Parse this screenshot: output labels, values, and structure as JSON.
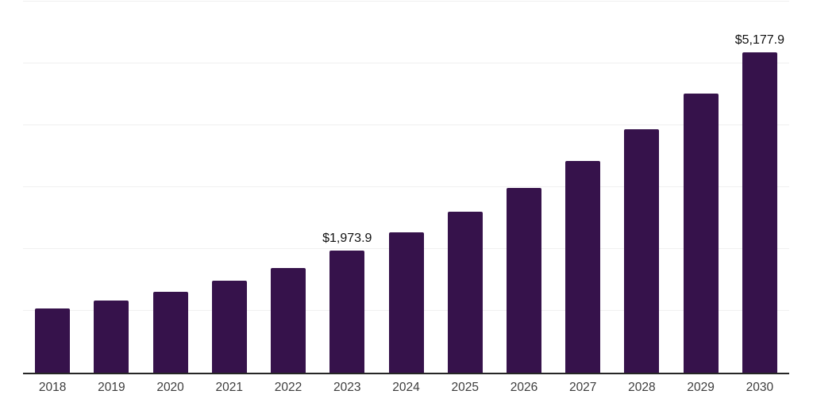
{
  "chart_data": {
    "type": "bar",
    "title": "",
    "xlabel": "",
    "ylabel": "",
    "categories": [
      "2018",
      "2019",
      "2020",
      "2021",
      "2022",
      "2023",
      "2024",
      "2025",
      "2026",
      "2027",
      "2028",
      "2029",
      "2030"
    ],
    "values": [
      1040,
      1165,
      1310,
      1490,
      1695,
      1973.9,
      2265,
      2600,
      2985,
      3425,
      3930,
      4510,
      5177.9
    ],
    "labeled_points": [
      {
        "category": "2023",
        "label": "$1,973.9"
      },
      {
        "category": "2030",
        "label": "$5,177.9"
      }
    ],
    "ylim": [
      0,
      6000
    ],
    "grid_interval": 1000,
    "grid": "horizontal",
    "legend": "none",
    "colors": {
      "bar": "#36124B",
      "grid": "#f0f0f0",
      "axis": "#262626",
      "value_label": "#111111",
      "tick_label": "#3d3d3d"
    }
  }
}
